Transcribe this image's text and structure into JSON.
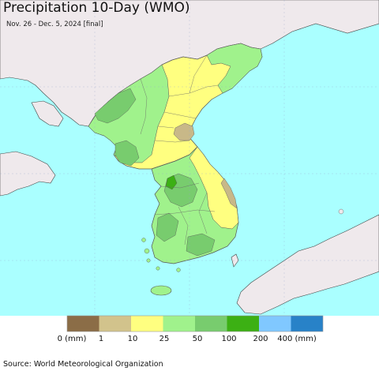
{
  "title": "Precipitation 10-Day (WMO)",
  "subtitle": "Nov. 26 - Dec. 5, 2024 [final]",
  "source": "Source: World Meteorological Organization",
  "legend": {
    "labels": [
      "0 (mm)",
      "1",
      "10",
      "25",
      "50",
      "100",
      "200",
      "400 (mm)"
    ],
    "colors": [
      "#8b6d47",
      "#d2c38c",
      "#ffff80",
      "#a0f28c",
      "#78cc6e",
      "#3cb014",
      "#80c8ff",
      "#2882c8"
    ]
  },
  "map_colors": {
    "sea": "#aaffff",
    "land": "#efe9ec",
    "dry": "#c8b888",
    "light": "#ffff80",
    "moderate": "#a0f28c",
    "heavy": "#78cc6e",
    "very_heavy": "#3cb014"
  }
}
